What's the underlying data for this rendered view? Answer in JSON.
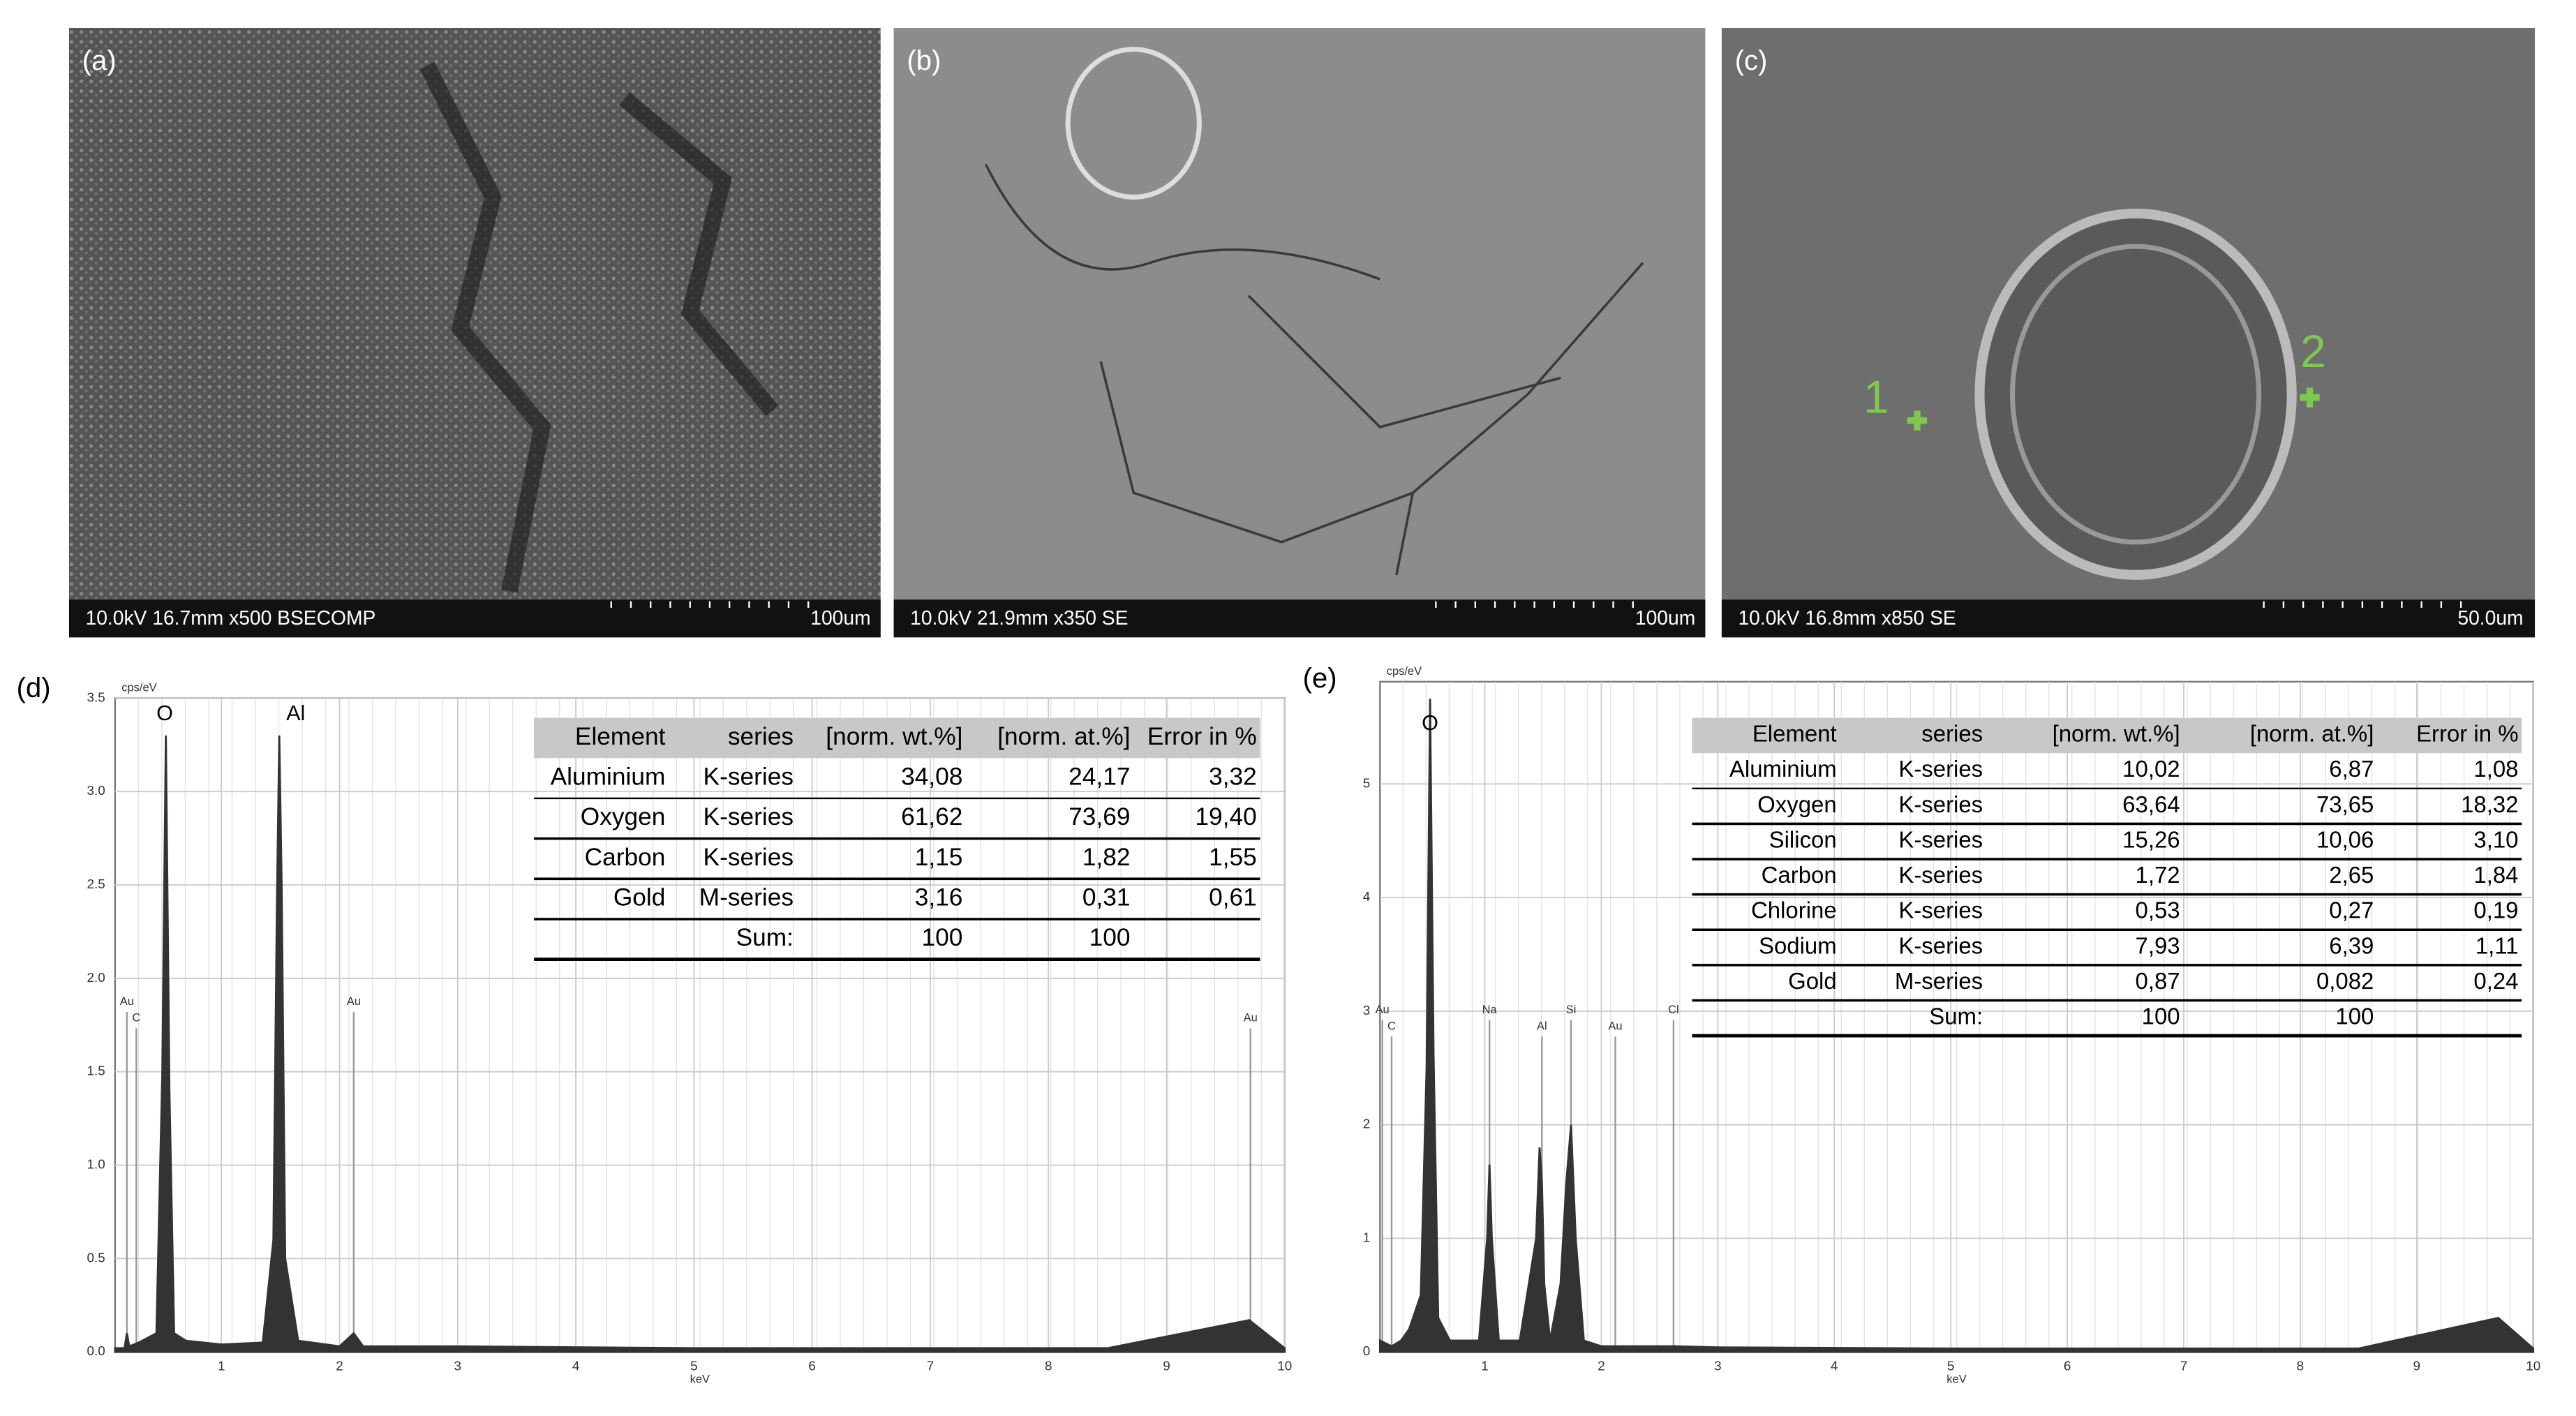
{
  "images": [
    {
      "label": "(a)",
      "caption": "10.0kV 16.7mm x500 BSECOMP",
      "scale": "100um"
    },
    {
      "label": "(b)",
      "caption": "10.0kV 21.9mm x350 SE",
      "scale": "100um"
    },
    {
      "label": "(c)",
      "caption": "10.0kV 16.8mm x850 SE",
      "scale": "50.0um",
      "markers": [
        "1",
        "2"
      ]
    }
  ],
  "chart_data": [
    {
      "type": "line",
      "label": "(d)",
      "y_label": "cps/eV",
      "x_label": "keV",
      "xlim": [
        0.1,
        10
      ],
      "ylim": [
        0,
        3.5
      ],
      "xticks": [
        1,
        2,
        3,
        4,
        5,
        6,
        7,
        8,
        9,
        10
      ],
      "yticks": [
        {
          "value": 0,
          "label": "0.0"
        },
        0.5,
        {
          "value": 1,
          "label": "1.0"
        },
        1.5,
        {
          "value": 2,
          "label": "2.0"
        },
        2.5,
        {
          "value": 3,
          "label": "3.0"
        },
        3.5
      ],
      "peak_labels": [
        {
          "text": "O",
          "x": 0.52
        },
        {
          "text": "Al",
          "x": 1.49
        }
      ],
      "annotations": [
        {
          "text": "Au",
          "x": 0.2
        },
        {
          "text": "C",
          "x": 0.28
        },
        {
          "text": "Au",
          "x": 2.12
        },
        {
          "text": "Au",
          "x": 9.71
        }
      ],
      "series": [
        {
          "name": "spectrum",
          "color": "#333333",
          "x": [
            0.1,
            0.18,
            0.2,
            0.22,
            0.3,
            0.45,
            0.5,
            0.53,
            0.56,
            0.6,
            0.7,
            1.0,
            1.35,
            1.44,
            1.47,
            1.49,
            1.51,
            1.54,
            1.65,
            2.0,
            2.12,
            2.2,
            3.0,
            5.0,
            8.5,
            9.7,
            10
          ],
          "values": [
            0.02,
            0.02,
            0.1,
            0.03,
            0.05,
            0.1,
            1.5,
            3.3,
            1.4,
            0.1,
            0.06,
            0.04,
            0.05,
            0.6,
            2.4,
            3.3,
            2.5,
            0.5,
            0.06,
            0.03,
            0.1,
            0.03,
            0.03,
            0.02,
            0.02,
            0.17,
            0.02
          ]
        }
      ],
      "table": {
        "columns": [
          "Element",
          "series",
          "[norm. wt.%]",
          "[norm. at.%]",
          "Error in %"
        ],
        "rows": [
          [
            "Aluminium",
            "K-series",
            "34,08",
            "24,17",
            "3,32"
          ],
          [
            "Oxygen",
            "K-series",
            "61,62",
            "73,69",
            "19,40"
          ],
          [
            "Carbon",
            "K-series",
            "1,15",
            "1,82",
            "1,55"
          ],
          [
            "Gold",
            "M-series",
            "3,16",
            "0,31",
            "0,61"
          ]
        ],
        "sum": [
          "Sum:",
          "100",
          "100"
        ]
      }
    },
    {
      "type": "line",
      "label": "(e)",
      "y_label": "cps/eV",
      "x_label": "keV",
      "xlim": [
        0.1,
        10
      ],
      "ylim": [
        0,
        5.9
      ],
      "xticks": [
        1,
        2,
        3,
        4,
        5,
        6,
        7,
        8,
        9,
        10
      ],
      "yticks": [
        0,
        1,
        2,
        3,
        4,
        5
      ],
      "peak_labels": [
        {
          "text": "O",
          "x": 0.53
        }
      ],
      "annotations": [
        {
          "text": "Au",
          "x": 0.12
        },
        {
          "text": "C",
          "x": 0.2
        },
        {
          "text": "Na",
          "x": 1.04
        },
        {
          "text": "Al",
          "x": 1.49
        },
        {
          "text": "Si",
          "x": 1.74
        },
        {
          "text": "Au",
          "x": 2.12
        },
        {
          "text": "Cl",
          "x": 2.62
        }
      ],
      "series": [
        {
          "name": "spectrum",
          "color": "#333333",
          "x": [
            0.1,
            0.2,
            0.28,
            0.35,
            0.45,
            0.5,
            0.53,
            0.56,
            0.6,
            0.7,
            0.95,
            1.02,
            1.04,
            1.06,
            1.12,
            1.3,
            1.44,
            1.47,
            1.49,
            1.51,
            1.56,
            1.65,
            1.7,
            1.74,
            1.78,
            1.85,
            2.0,
            2.62,
            3.0,
            5.0,
            8.5,
            9.7,
            10
          ],
          "values": [
            0.1,
            0.05,
            0.1,
            0.2,
            0.5,
            2.5,
            5.75,
            2.6,
            0.3,
            0.1,
            0.1,
            1.0,
            1.65,
            1.0,
            0.1,
            0.1,
            1.0,
            1.8,
            1.5,
            0.6,
            0.1,
            0.6,
            1.5,
            2.0,
            1.0,
            0.1,
            0.05,
            0.05,
            0.04,
            0.03,
            0.03,
            0.3,
            0.03
          ]
        }
      ],
      "table": {
        "columns": [
          "Element",
          "series",
          "[norm. wt.%]",
          "[norm. at.%]",
          "Error in %"
        ],
        "rows": [
          [
            "Aluminium",
            "K-series",
            "10,02",
            "6,87",
            "1,08"
          ],
          [
            "Oxygen",
            "K-series",
            "63,64",
            "73,65",
            "18,32"
          ],
          [
            "Silicon",
            "K-series",
            "15,26",
            "10,06",
            "3,10"
          ],
          [
            "Carbon",
            "K-series",
            "1,72",
            "2,65",
            "1,84"
          ],
          [
            "Chlorine",
            "K-series",
            "0,53",
            "0,27",
            "0,19"
          ],
          [
            "Sodium",
            "K-series",
            "7,93",
            "6,39",
            "1,11"
          ],
          [
            "Gold",
            "M-series",
            "0,87",
            "0,082",
            "0,24"
          ]
        ],
        "sum": [
          "Sum:",
          "100",
          "100"
        ]
      }
    }
  ]
}
